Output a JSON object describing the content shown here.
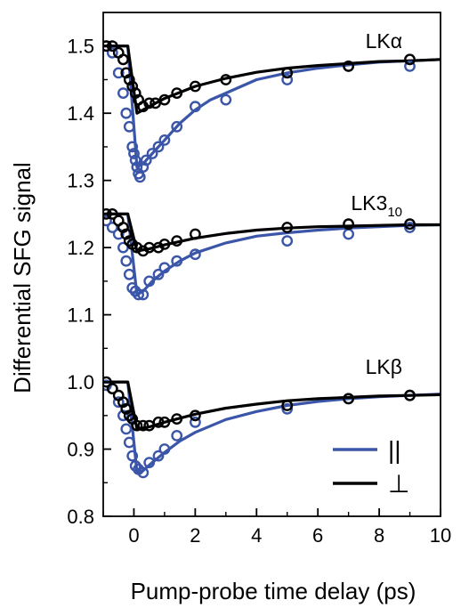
{
  "chart_data": {
    "type": "scatter",
    "xlabel": "Pump-probe time delay (ps)",
    "ylabel": "Differential SFG signal",
    "xlim": [
      -1,
      10
    ],
    "ylim": [
      0.8,
      1.55
    ],
    "xticks": [
      0,
      2,
      4,
      6,
      8,
      10
    ],
    "yticks": [
      0.8,
      0.9,
      1.0,
      1.1,
      1.2,
      1.3,
      1.4,
      1.5
    ],
    "ytick_labels": [
      "0.8",
      "0.9",
      "1.0",
      "1.1",
      "1.2",
      "1.3",
      "1.4",
      "1.5"
    ],
    "legend": {
      "placement": "bottom-right",
      "items": [
        {
          "symbol": "||",
          "color": "#3b56a8"
        },
        {
          "symbol": "⊥",
          "color": "#000000"
        }
      ]
    },
    "panels": [
      {
        "label": "LKα",
        "label_main": "LK",
        "label_sub": "",
        "label_suffix": "α",
        "series": [
          {
            "color": "#3b56a8",
            "points": [
              [
                -0.9,
                1.5
              ],
              [
                -0.7,
                1.49
              ],
              [
                -0.5,
                1.46
              ],
              [
                -0.35,
                1.43
              ],
              [
                -0.25,
                1.4
              ],
              [
                -0.15,
                1.38
              ],
              [
                -0.05,
                1.35
              ],
              [
                0.0,
                1.34
              ],
              [
                0.05,
                1.33
              ],
              [
                0.1,
                1.32
              ],
              [
                0.15,
                1.31
              ],
              [
                0.2,
                1.305
              ],
              [
                0.3,
                1.32
              ],
              [
                0.4,
                1.33
              ],
              [
                0.6,
                1.34
              ],
              [
                0.8,
                1.35
              ],
              [
                1.0,
                1.36
              ],
              [
                1.4,
                1.38
              ],
              [
                2.0,
                1.41
              ],
              [
                3.0,
                1.42
              ],
              [
                5.0,
                1.45
              ],
              [
                7.0,
                1.47
              ],
              [
                9.0,
                1.47
              ]
            ],
            "fit": [
              [
                -1.0,
                1.5
              ],
              [
                -0.2,
                1.5
              ],
              [
                0.1,
                1.32
              ],
              [
                0.3,
                1.325
              ],
              [
                0.6,
                1.34
              ],
              [
                1.0,
                1.36
              ],
              [
                1.5,
                1.385
              ],
              [
                2.0,
                1.405
              ],
              [
                2.5,
                1.42
              ],
              [
                3.0,
                1.43
              ],
              [
                4.0,
                1.45
              ],
              [
                5.0,
                1.46
              ],
              [
                6.0,
                1.467
              ],
              [
                7.0,
                1.472
              ],
              [
                8.0,
                1.476
              ],
              [
                9.0,
                1.478
              ],
              [
                10.0,
                1.48
              ]
            ]
          },
          {
            "color": "#000000",
            "points": [
              [
                -0.9,
                1.5
              ],
              [
                -0.7,
                1.5
              ],
              [
                -0.5,
                1.49
              ],
              [
                -0.35,
                1.48
              ],
              [
                -0.25,
                1.46
              ],
              [
                -0.15,
                1.45
              ],
              [
                -0.05,
                1.44
              ],
              [
                0.05,
                1.43
              ],
              [
                0.15,
                1.42
              ],
              [
                0.3,
                1.41
              ],
              [
                0.5,
                1.415
              ],
              [
                0.7,
                1.415
              ],
              [
                1.0,
                1.42
              ],
              [
                1.4,
                1.43
              ],
              [
                2.0,
                1.44
              ],
              [
                3.0,
                1.45
              ],
              [
                5.0,
                1.46
              ],
              [
                7.0,
                1.47
              ],
              [
                9.0,
                1.48
              ]
            ],
            "fit": [
              [
                -1.0,
                1.5
              ],
              [
                -0.2,
                1.5
              ],
              [
                0.1,
                1.4
              ],
              [
                0.5,
                1.41
              ],
              [
                1.0,
                1.422
              ],
              [
                2.0,
                1.44
              ],
              [
                3.0,
                1.452
              ],
              [
                4.0,
                1.461
              ],
              [
                5.0,
                1.467
              ],
              [
                6.0,
                1.471
              ],
              [
                7.0,
                1.474
              ],
              [
                8.0,
                1.477
              ],
              [
                9.0,
                1.478
              ],
              [
                10.0,
                1.48
              ]
            ]
          }
        ]
      },
      {
        "label": "LK3₁₀",
        "label_main": "LK3",
        "label_sub": "10",
        "label_suffix": "",
        "series": [
          {
            "color": "#3b56a8",
            "points": [
              [
                -0.9,
                1.24
              ],
              [
                -0.7,
                1.23
              ],
              [
                -0.5,
                1.22
              ],
              [
                -0.35,
                1.2
              ],
              [
                -0.25,
                1.18
              ],
              [
                -0.15,
                1.16
              ],
              [
                -0.05,
                1.14
              ],
              [
                0.05,
                1.135
              ],
              [
                0.15,
                1.13
              ],
              [
                0.3,
                1.13
              ],
              [
                0.5,
                1.15
              ],
              [
                0.8,
                1.16
              ],
              [
                1.0,
                1.17
              ],
              [
                1.4,
                1.18
              ],
              [
                2.0,
                1.19
              ],
              [
                5.0,
                1.21
              ],
              [
                7.0,
                1.22
              ],
              [
                9.0,
                1.23
              ]
            ],
            "fit": [
              [
                -1.0,
                1.25
              ],
              [
                -0.2,
                1.25
              ],
              [
                0.1,
                1.13
              ],
              [
                0.3,
                1.135
              ],
              [
                0.6,
                1.15
              ],
              [
                1.0,
                1.165
              ],
              [
                1.5,
                1.18
              ],
              [
                2.0,
                1.192
              ],
              [
                3.0,
                1.207
              ],
              [
                4.0,
                1.217
              ],
              [
                5.0,
                1.222
              ],
              [
                6.0,
                1.226
              ],
              [
                7.0,
                1.229
              ],
              [
                8.0,
                1.231
              ],
              [
                9.0,
                1.233
              ],
              [
                10.0,
                1.234
              ]
            ]
          },
          {
            "color": "#000000",
            "points": [
              [
                -0.9,
                1.25
              ],
              [
                -0.7,
                1.25
              ],
              [
                -0.5,
                1.24
              ],
              [
                -0.35,
                1.23
              ],
              [
                -0.25,
                1.22
              ],
              [
                -0.15,
                1.21
              ],
              [
                -0.05,
                1.205
              ],
              [
                0.1,
                1.2
              ],
              [
                0.3,
                1.195
              ],
              [
                0.5,
                1.2
              ],
              [
                0.8,
                1.2
              ],
              [
                1.0,
                1.205
              ],
              [
                1.4,
                1.21
              ],
              [
                2.0,
                1.22
              ],
              [
                5.0,
                1.23
              ],
              [
                7.0,
                1.235
              ],
              [
                9.0,
                1.235
              ]
            ],
            "fit": [
              [
                -1.0,
                1.25
              ],
              [
                -0.2,
                1.25
              ],
              [
                0.1,
                1.195
              ],
              [
                0.5,
                1.198
              ],
              [
                1.0,
                1.204
              ],
              [
                2.0,
                1.214
              ],
              [
                3.0,
                1.221
              ],
              [
                4.0,
                1.226
              ],
              [
                5.0,
                1.229
              ],
              [
                6.0,
                1.231
              ],
              [
                7.0,
                1.232
              ],
              [
                8.0,
                1.233
              ],
              [
                9.0,
                1.234
              ],
              [
                10.0,
                1.234
              ]
            ]
          }
        ]
      },
      {
        "label": "LKβ",
        "label_main": "LK",
        "label_sub": "",
        "label_suffix": "β",
        "series": [
          {
            "color": "#3b56a8",
            "points": [
              [
                -0.9,
                0.995
              ],
              [
                -0.7,
                0.99
              ],
              [
                -0.5,
                0.97
              ],
              [
                -0.35,
                0.95
              ],
              [
                -0.25,
                0.93
              ],
              [
                -0.15,
                0.91
              ],
              [
                -0.05,
                0.89
              ],
              [
                0.05,
                0.875
              ],
              [
                0.15,
                0.87
              ],
              [
                0.3,
                0.865
              ],
              [
                0.5,
                0.88
              ],
              [
                0.8,
                0.89
              ],
              [
                1.0,
                0.9
              ],
              [
                1.4,
                0.92
              ],
              [
                2.0,
                0.94
              ],
              [
                5.0,
                0.96
              ],
              [
                7.0,
                0.975
              ],
              [
                9.0,
                0.98
              ]
            ],
            "fit": [
              [
                -1.0,
                1.0
              ],
              [
                -0.2,
                1.0
              ],
              [
                0.1,
                0.865
              ],
              [
                0.3,
                0.868
              ],
              [
                0.6,
                0.88
              ],
              [
                1.0,
                0.895
              ],
              [
                1.5,
                0.912
              ],
              [
                2.0,
                0.925
              ],
              [
                3.0,
                0.944
              ],
              [
                4.0,
                0.956
              ],
              [
                5.0,
                0.965
              ],
              [
                6.0,
                0.971
              ],
              [
                7.0,
                0.975
              ],
              [
                8.0,
                0.978
              ],
              [
                9.0,
                0.98
              ],
              [
                10.0,
                0.982
              ]
            ]
          },
          {
            "color": "#000000",
            "points": [
              [
                -0.9,
                1.0
              ],
              [
                -0.7,
                0.99
              ],
              [
                -0.5,
                0.98
              ],
              [
                -0.35,
                0.97
              ],
              [
                -0.25,
                0.96
              ],
              [
                -0.15,
                0.95
              ],
              [
                -0.05,
                0.945
              ],
              [
                0.1,
                0.935
              ],
              [
                0.3,
                0.935
              ],
              [
                0.5,
                0.935
              ],
              [
                0.8,
                0.94
              ],
              [
                1.0,
                0.94
              ],
              [
                1.4,
                0.945
              ],
              [
                2.0,
                0.95
              ],
              [
                5.0,
                0.965
              ],
              [
                7.0,
                0.975
              ],
              [
                9.0,
                0.98
              ]
            ],
            "fit": [
              [
                -1.0,
                1.0
              ],
              [
                -0.2,
                1.0
              ],
              [
                0.1,
                0.93
              ],
              [
                0.5,
                0.933
              ],
              [
                1.0,
                0.94
              ],
              [
                2.0,
                0.952
              ],
              [
                3.0,
                0.961
              ],
              [
                4.0,
                0.967
              ],
              [
                5.0,
                0.972
              ],
              [
                6.0,
                0.975
              ],
              [
                7.0,
                0.977
              ],
              [
                8.0,
                0.979
              ],
              [
                9.0,
                0.98
              ],
              [
                10.0,
                0.981
              ]
            ]
          }
        ]
      }
    ]
  }
}
